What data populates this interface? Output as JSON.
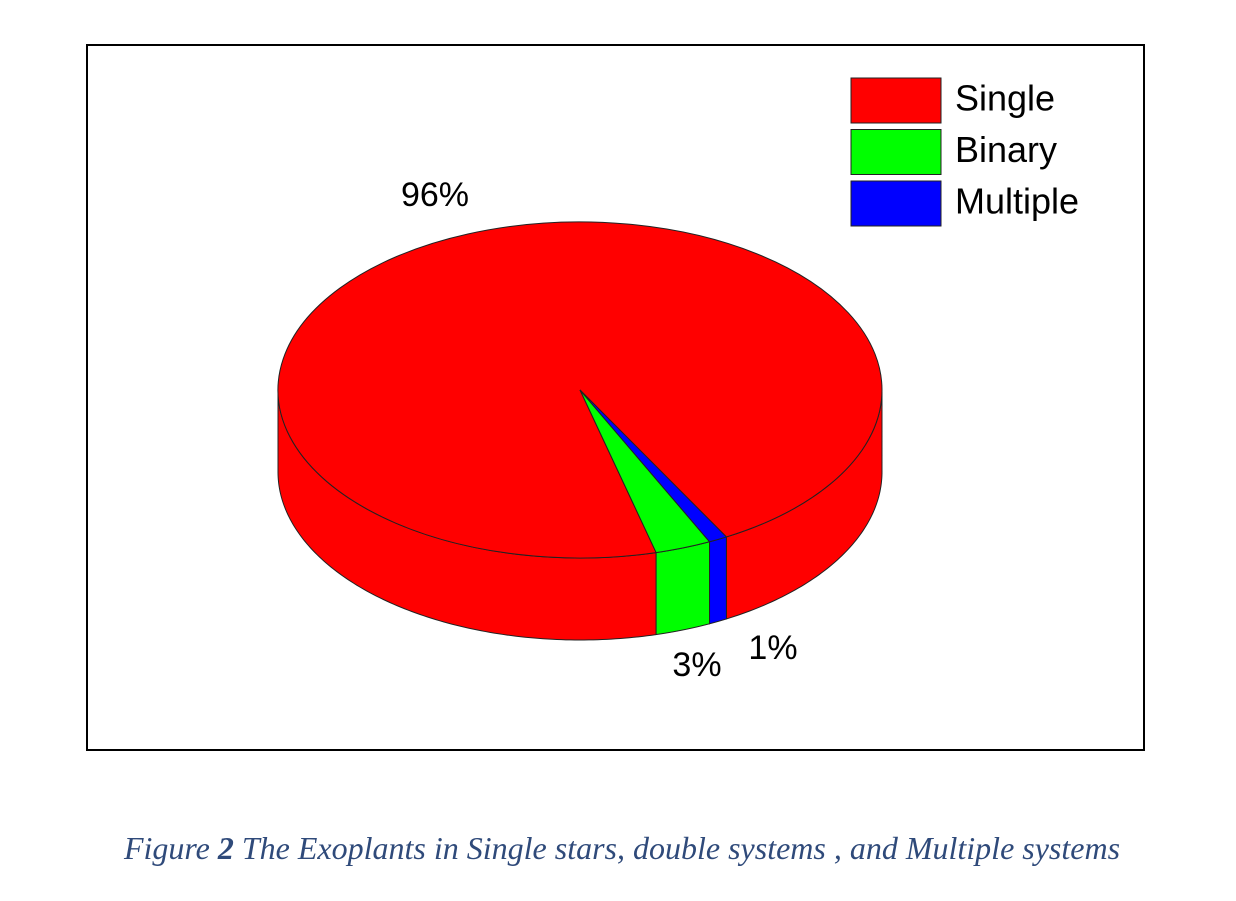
{
  "chart_data": {
    "type": "pie",
    "categories": [
      "Single",
      "Binary",
      "Multiple"
    ],
    "values": [
      96,
      3,
      1
    ],
    "value_labels": [
      "96%",
      "3%",
      "1%"
    ],
    "colors": [
      "#ff0000",
      "#00ff00",
      "#0000ff"
    ],
    "legend": "top-right"
  },
  "caption": {
    "prefix": "Figure",
    "number": "2",
    "text": "The Exoplants in Single stars, double systems , and Multiple systems"
  }
}
